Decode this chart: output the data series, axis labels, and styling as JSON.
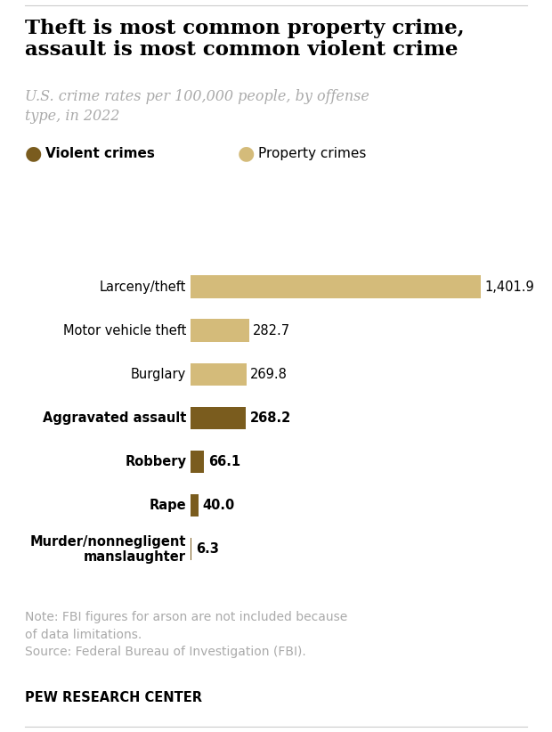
{
  "title": "Theft is most common property crime,\nassault is most common violent crime",
  "subtitle": "U.S. crime rates per 100,000 people, by offense\ntype, in 2022",
  "categories": [
    "Larceny/theft",
    "Motor vehicle theft",
    "Burglary",
    "Aggravated assault",
    "Robbery",
    "Rape",
    "Murder/nonnegligent\nmanslaughter"
  ],
  "values": [
    1401.9,
    282.7,
    269.8,
    268.2,
    66.1,
    40.0,
    6.3
  ],
  "labels": [
    "1,401.9",
    "282.7",
    "269.8",
    "268.2",
    "66.1",
    "40.0",
    "6.3"
  ],
  "crime_type": [
    "property",
    "property",
    "property",
    "violent",
    "violent",
    "violent",
    "violent"
  ],
  "bold_labels": [
    false,
    false,
    false,
    true,
    true,
    true,
    true
  ],
  "bar_colors_property": "#d4bb7a",
  "bar_colors_violent": "#7a5c1e",
  "legend_violent_color": "#7a5c1e",
  "legend_property_color": "#d4bb7a",
  "note_text": "Note: FBI figures for arson are not included because\nof data limitations.\nSource: Federal Bureau of Investigation (FBI).",
  "footer_text": "PEW RESEARCH CENTER",
  "title_color": "#000000",
  "subtitle_color": "#aaaaaa",
  "note_color": "#aaaaaa",
  "footer_color": "#000000",
  "bg_color": "#ffffff",
  "xlim": [
    0,
    1600
  ],
  "bar_height": 0.52
}
